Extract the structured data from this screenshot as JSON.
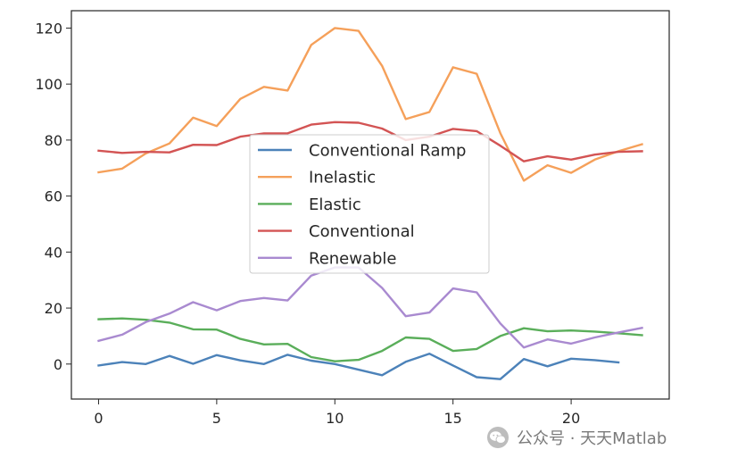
{
  "chart_data": {
    "type": "line",
    "x": [
      0,
      1,
      2,
      3,
      4,
      5,
      6,
      7,
      8,
      9,
      10,
      11,
      12,
      13,
      14,
      15,
      16,
      17,
      18,
      19,
      20,
      21,
      22,
      23
    ],
    "series": [
      {
        "name": "Conventional Ramp",
        "color": "#4c82b9",
        "values": [
          -0.5,
          0.7,
          0.0,
          2.9,
          0.1,
          3.2,
          1.3,
          0.0,
          3.3,
          1.2,
          0.0,
          -2.0,
          -4.0,
          0.8,
          3.7,
          -0.5,
          -4.7,
          -5.4,
          1.8,
          -0.8,
          1.9,
          1.4,
          0.6,
          null
        ]
      },
      {
        "name": "Inelastic",
        "color": "#f5a05a",
        "values": [
          68.5,
          69.8,
          75.2,
          78.8,
          88.0,
          85.0,
          94.7,
          99.0,
          97.7,
          114.0,
          120.0,
          119.0,
          106.5,
          87.5,
          90.0,
          106.0,
          103.7,
          82.5,
          65.5,
          71.0,
          68.3,
          73.0,
          76.0,
          78.5
        ]
      },
      {
        "name": "Elastic",
        "color": "#5aae5a",
        "values": [
          16.0,
          16.3,
          15.8,
          14.8,
          12.4,
          12.3,
          9.0,
          7.0,
          7.2,
          2.5,
          1.0,
          1.5,
          4.7,
          9.5,
          9.0,
          4.7,
          5.4,
          10.0,
          12.8,
          11.7,
          12.0,
          11.6,
          11.0,
          10.3
        ]
      },
      {
        "name": "Conventional",
        "color": "#d35454",
        "values": [
          76.2,
          75.4,
          75.8,
          75.6,
          78.3,
          78.2,
          81.2,
          82.4,
          82.4,
          85.5,
          86.4,
          86.2,
          84.1,
          80.0,
          81.2,
          84.0,
          83.2,
          78.0,
          72.4,
          74.2,
          73.0,
          74.8,
          75.8,
          76.0
        ]
      },
      {
        "name": "Renewable",
        "color": "#a98ad0",
        "values": [
          8.3,
          10.5,
          15.0,
          18.0,
          22.1,
          19.2,
          22.5,
          23.6,
          22.7,
          31.6,
          34.5,
          34.5,
          27.2,
          17.1,
          18.4,
          27.0,
          25.6,
          14.5,
          5.9,
          8.8,
          7.3,
          9.5,
          11.3,
          12.9
        ]
      }
    ],
    "xticks": [
      0,
      5,
      10,
      15,
      20
    ],
    "yticks": [
      0,
      20,
      40,
      60,
      80,
      100,
      120
    ],
    "xlim": [
      -1.15,
      24.15
    ],
    "ylim": [
      -12.5,
      126.2
    ],
    "grid": false,
    "legend": "center"
  },
  "watermark": {
    "text": "公众号 · 天天Matlab"
  }
}
